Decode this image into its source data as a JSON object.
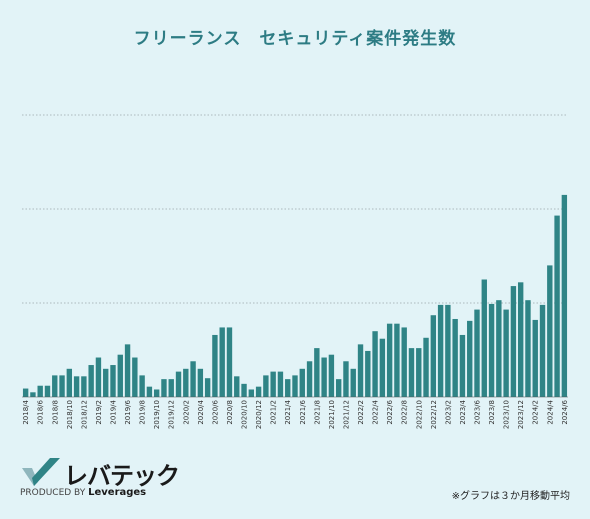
{
  "chart_data": {
    "type": "bar",
    "title": "フリーランス　セキュリティ案件発生数",
    "note": "※グラフは３か月移動平均",
    "color": "#2f8486",
    "grid": true,
    "ylim": [
      0,
      30
    ],
    "categories": [
      "2018/4",
      "2018/5",
      "2018/6",
      "2018/7",
      "2018/8",
      "2018/9",
      "2018/10",
      "2018/11",
      "2018/12",
      "2019/1",
      "2019/2",
      "2019/3",
      "2019/4",
      "2019/5",
      "2019/6",
      "2019/7",
      "2019/8",
      "2019/9",
      "2019/10",
      "2019/11",
      "2019/12",
      "2020/1",
      "2020/2",
      "2020/3",
      "2020/4",
      "2020/5",
      "2020/6",
      "2020/7",
      "2020/8",
      "2020/9",
      "2020/10",
      "2020/11",
      "2020/12",
      "2021/1",
      "2021/2",
      "2021/3",
      "2021/4",
      "2021/5",
      "2021/6",
      "2021/7",
      "2021/8",
      "2021/9",
      "2021/10",
      "2021/11",
      "2021/12",
      "2022/1",
      "2022/2",
      "2022/3",
      "2022/4",
      "2022/5",
      "2022/6",
      "2022/7",
      "2022/8",
      "2022/9",
      "2022/10",
      "2022/11",
      "2022/12",
      "2023/1",
      "2023/2",
      "2023/3",
      "2023/4",
      "2023/5",
      "2023/6",
      "2023/7",
      "2023/8",
      "2023/9",
      "2023/10",
      "2023/11",
      "2023/12",
      "2024/1",
      "2024/2",
      "2024/3",
      "2024/4",
      "2024/5",
      "2024/6"
    ],
    "tick_labels": [
      "2018/4",
      "2018/6",
      "2018/8",
      "2018/10",
      "2018/12",
      "2019/2",
      "2019/4",
      "2019/6",
      "2019/8",
      "2019/10",
      "2019/12",
      "2020/2",
      "2020/4",
      "2020/6",
      "2020/8",
      "2020/10",
      "2020/12",
      "2021/2",
      "2021/4",
      "2021/6",
      "2021/8",
      "2021/10",
      "2021/12",
      "2022/2",
      "2022/4",
      "2022/6",
      "2022/8",
      "2022/10",
      "2022/12",
      "2023/2",
      "2023/4",
      "2023/6",
      "2023/8",
      "2023/10",
      "2023/12",
      "2024/2",
      "2024/4",
      "2024/6"
    ],
    "values": [
      0.9,
      0.5,
      1.2,
      1.2,
      2.3,
      2.3,
      3.0,
      2.2,
      2.2,
      3.4,
      4.2,
      3.0,
      3.4,
      4.5,
      5.6,
      4.2,
      2.3,
      1.1,
      0.8,
      1.9,
      1.9,
      2.7,
      3.0,
      3.8,
      3.0,
      2.0,
      6.6,
      7.4,
      7.4,
      2.2,
      1.4,
      0.8,
      1.1,
      2.3,
      2.7,
      2.7,
      1.9,
      2.3,
      3.0,
      3.8,
      5.2,
      4.2,
      4.5,
      1.9,
      3.8,
      3.0,
      5.6,
      4.9,
      7.0,
      6.2,
      7.8,
      7.8,
      7.4,
      5.2,
      5.2,
      6.3,
      8.7,
      9.8,
      9.8,
      8.3,
      6.6,
      8.1,
      9.3,
      12.5,
      9.9,
      10.3,
      9.3,
      11.8,
      12.2,
      10.3,
      8.2,
      9.8,
      14.0,
      19.3,
      21.5
    ]
  },
  "logo": {
    "name": "レバテック",
    "produced_by": "PRODUCED BY",
    "brand": "Leverages",
    "mark_color": "#2f8486"
  }
}
